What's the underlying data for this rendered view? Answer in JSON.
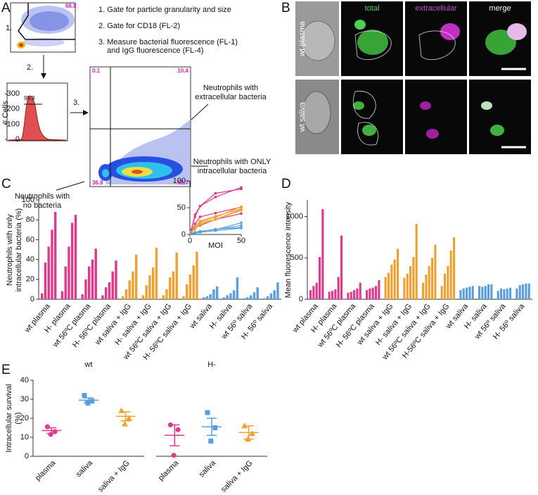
{
  "panel_labels": [
    "A",
    "B",
    "C",
    "D",
    "E"
  ],
  "panel_a": {
    "steps": [
      "1. Gate for particle granularity and size",
      "2. Gate for CD18 (FL-2)",
      "3. Measure bacterial fluorescence (FL-1)",
      "and IgG fluorescence (FL-4)"
    ],
    "step_numbers": [
      "1.",
      "2.",
      "3."
    ],
    "gate_scatter": 66.8,
    "gate_histogram": 95.8,
    "histogram_ylabel": "# Cells",
    "histogram_ylim": [
      0,
      370
    ],
    "histogram_yticks": [
      0,
      100,
      200,
      300
    ],
    "quadrants": [
      0.1,
      10.4,
      36.8,
      52.7
    ],
    "annotations": [
      "Neutrophils with",
      "extracellular bacteria",
      "Neutrophils with ONLY",
      "intracellular bacteria",
      "Neutrophils with",
      "no bacteria"
    ]
  },
  "panel_b": {
    "columns": [
      "total",
      "extracellular",
      "merge"
    ],
    "rows": [
      "wt plasma",
      "wt saliva"
    ]
  },
  "chart_data": [
    {
      "type": "bar",
      "ylabel": [
        "Neutrophils with only",
        "intracellular bacteria (%)"
      ],
      "categories": [
        "wt plasma",
        "H- plasma",
        "wt 56ºC plasma",
        "H- 56ºC plasma",
        "wt saliva + IgG",
        "H- saliva + IgG",
        "wt 56ºC saliva + IgG",
        "H- 56ºC saliva + IgG",
        "wt saliva",
        "H- saliva",
        "wt 56º saliva",
        "H- 56º saliva"
      ],
      "colors": [
        "#e0388a",
        "#e0388a",
        "#e0388a",
        "#e0388a",
        "#f0a030",
        "#f0a030",
        "#f0a030",
        "#f0a030",
        "#5a9ee0",
        "#5a9ee0",
        "#5a9ee0",
        "#5a9ee0"
      ],
      "values": [
        [
          6,
          37,
          53,
          70,
          88
        ],
        [
          8,
          33,
          53,
          77,
          85
        ],
        [
          5,
          20,
          33,
          40,
          51
        ],
        [
          4,
          12,
          17,
          28,
          39
        ],
        [
          3,
          10,
          19,
          28,
          45
        ],
        [
          4,
          14,
          24,
          32,
          52
        ],
        [
          4,
          10,
          22,
          28,
          47
        ],
        [
          3,
          15,
          25,
          34,
          48
        ],
        [
          2,
          3,
          5,
          10,
          13
        ],
        [
          2,
          4,
          6,
          9,
          22
        ],
        [
          1,
          2,
          4,
          7,
          12
        ],
        [
          1,
          3,
          6,
          9,
          17
        ]
      ],
      "ylim": [
        0,
        100
      ],
      "yticks": [
        0,
        20,
        40,
        60,
        80,
        100
      ]
    },
    {
      "type": "line",
      "xlabel": "MOI",
      "x": [
        1,
        5,
        10,
        25,
        50
      ],
      "xlim": [
        0,
        50
      ],
      "xticks": [
        0,
        50
      ],
      "ylim": [
        0,
        100
      ],
      "yticks": [
        0,
        50,
        100
      ]
    },
    {
      "type": "bar",
      "ylabel": [
        "Mean fluorescence intensity"
      ],
      "categories": [
        "wt plasma",
        "H- plasma",
        "wt 56ºC plasma",
        "H- 56ºC plasma",
        "wt saliva + IgG",
        "H- saliva + IgG",
        "wt 56ºC saliva + IgG",
        "H-56ºC saliva + IgG",
        "wt saliva",
        "H- saliva",
        "wt 56º saliva",
        "H- 56º saliva"
      ],
      "colors": [
        "#e0388a",
        "#e0388a",
        "#e0388a",
        "#e0388a",
        "#f0a030",
        "#f0a030",
        "#f0a030",
        "#f0a030",
        "#5a9ee0",
        "#5a9ee0",
        "#5a9ee0",
        "#5a9ee0"
      ],
      "values": [
        [
          110,
          160,
          200,
          510,
          1090
        ],
        [
          90,
          100,
          120,
          270,
          770
        ],
        [
          80,
          90,
          110,
          130,
          200
        ],
        [
          110,
          130,
          140,
          160,
          230
        ],
        [
          270,
          320,
          420,
          480,
          610
        ],
        [
          260,
          310,
          400,
          510,
          910
        ],
        [
          200,
          300,
          400,
          500,
          660
        ],
        [
          160,
          310,
          400,
          590,
          750
        ],
        [
          110,
          130,
          140,
          150,
          160
        ],
        [
          160,
          150,
          160,
          180,
          180
        ],
        [
          100,
          130,
          120,
          130,
          140
        ],
        [
          130,
          170,
          180,
          190,
          190
        ]
      ],
      "ylim": [
        0,
        1200
      ],
      "yticks": [
        0,
        500,
        1000
      ]
    },
    {
      "type": "scatter",
      "title": "wt",
      "ylabel": [
        "Intracellular survival",
        "(%)"
      ],
      "categories": [
        "plasma",
        "saliva",
        "saliva + IgG"
      ],
      "colors": [
        "#e0388a",
        "#5a9ee0",
        "#f0a030"
      ],
      "markers": [
        "circle",
        "square",
        "triangle"
      ],
      "points": [
        [
          15.5,
          13,
          11.5
        ],
        [
          32,
          29,
          28
        ],
        [
          24,
          20,
          17
        ]
      ],
      "means": [
        13.5,
        29.5,
        21
      ],
      "errors": [
        1.5,
        1.2,
        2.4
      ],
      "ylim": [
        0,
        40
      ],
      "yticks": [
        0,
        10,
        20,
        30,
        40
      ]
    },
    {
      "type": "scatter",
      "title": "H-",
      "categories": [
        "plasma",
        "saliva",
        "saliva + IgG"
      ],
      "colors": [
        "#e0388a",
        "#5a9ee0",
        "#f0a030"
      ],
      "markers": [
        "circle",
        "square",
        "triangle"
      ],
      "points": [
        [
          16.5,
          14,
          0.5
        ],
        [
          23,
          15,
          8
        ],
        [
          16,
          12,
          9
        ]
      ],
      "means": [
        11,
        15.5,
        12.5
      ],
      "errors": [
        5.5,
        4.5,
        3.5
      ],
      "ylim": [
        0,
        40
      ]
    }
  ]
}
